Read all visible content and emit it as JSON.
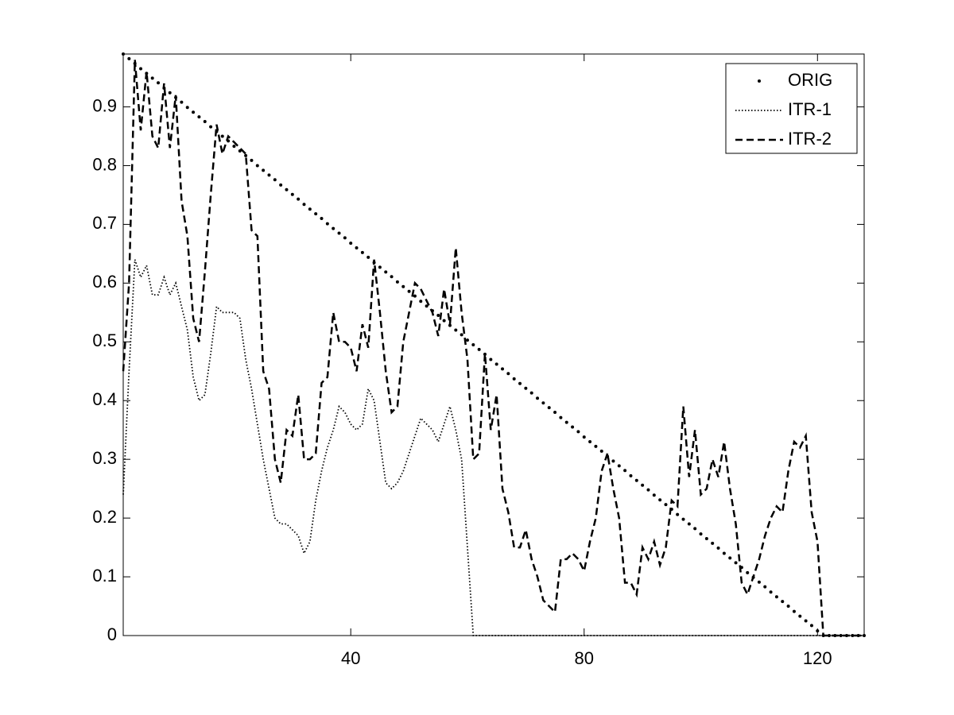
{
  "chart_data": {
    "type": "line",
    "x": [
      1,
      2,
      3,
      4,
      5,
      6,
      7,
      8,
      9,
      10,
      11,
      12,
      13,
      14,
      15,
      16,
      17,
      18,
      19,
      20,
      21,
      22,
      23,
      24,
      25,
      26,
      27,
      28,
      29,
      30,
      31,
      32,
      33,
      34,
      35,
      36,
      37,
      38,
      39,
      40,
      41,
      42,
      43,
      44,
      45,
      46,
      47,
      48,
      49,
      50,
      51,
      52,
      53,
      54,
      55,
      56,
      57,
      58,
      59,
      60,
      61,
      62,
      63,
      64,
      65,
      66,
      67,
      68,
      69,
      70,
      71,
      72,
      73,
      74,
      75,
      76,
      77,
      78,
      79,
      80,
      81,
      82,
      83,
      84,
      85,
      86,
      87,
      88,
      89,
      90,
      91,
      92,
      93,
      94,
      95,
      96,
      97,
      98,
      99,
      100,
      101,
      102,
      103,
      104,
      105,
      106,
      107,
      108,
      109,
      110,
      111,
      112,
      113,
      114,
      115,
      116,
      117,
      118,
      119,
      120,
      121,
      122,
      123,
      124,
      125,
      126,
      127,
      128
    ],
    "series": [
      {
        "name": "ORIG",
        "color": "#000000",
        "style": "marker",
        "values": [
          0.99,
          0.982,
          0.974,
          0.965,
          0.957,
          0.949,
          0.941,
          0.932,
          0.924,
          0.916,
          0.908,
          0.899,
          0.891,
          0.883,
          0.875,
          0.866,
          0.858,
          0.85,
          0.842,
          0.833,
          0.825,
          0.817,
          0.809,
          0.8,
          0.792,
          0.784,
          0.776,
          0.767,
          0.759,
          0.751,
          0.743,
          0.734,
          0.726,
          0.718,
          0.71,
          0.701,
          0.693,
          0.685,
          0.677,
          0.668,
          0.66,
          0.652,
          0.644,
          0.635,
          0.627,
          0.619,
          0.611,
          0.602,
          0.594,
          0.586,
          0.578,
          0.569,
          0.561,
          0.553,
          0.545,
          0.536,
          0.528,
          0.52,
          0.512,
          0.503,
          0.495,
          0.487,
          0.479,
          0.47,
          0.462,
          0.454,
          0.446,
          0.437,
          0.429,
          0.421,
          0.413,
          0.404,
          0.396,
          0.388,
          0.38,
          0.371,
          0.363,
          0.355,
          0.347,
          0.338,
          0.33,
          0.322,
          0.314,
          0.305,
          0.297,
          0.289,
          0.281,
          0.272,
          0.264,
          0.256,
          0.248,
          0.239,
          0.231,
          0.223,
          0.215,
          0.206,
          0.198,
          0.19,
          0.182,
          0.173,
          0.165,
          0.157,
          0.149,
          0.14,
          0.132,
          0.124,
          0.116,
          0.107,
          0.099,
          0.091,
          0.083,
          0.074,
          0.066,
          0.058,
          0.05,
          0.041,
          0.033,
          0.025,
          0.017,
          0.008,
          0,
          0,
          0,
          0,
          0,
          0,
          0,
          0
        ]
      },
      {
        "name": "ITR-1",
        "color": "#000000",
        "style": "dotted",
        "values": [
          0.24,
          0.45,
          0.64,
          0.61,
          0.63,
          0.58,
          0.58,
          0.61,
          0.58,
          0.6,
          0.56,
          0.52,
          0.44,
          0.4,
          0.41,
          0.48,
          0.56,
          0.55,
          0.55,
          0.55,
          0.54,
          0.47,
          0.42,
          0.36,
          0.3,
          0.25,
          0.2,
          0.19,
          0.19,
          0.18,
          0.17,
          0.14,
          0.16,
          0.23,
          0.28,
          0.32,
          0.35,
          0.39,
          0.38,
          0.36,
          0.35,
          0.36,
          0.42,
          0.4,
          0.33,
          0.26,
          0.25,
          0.26,
          0.28,
          0.31,
          0.34,
          0.37,
          0.36,
          0.35,
          0.33,
          0.36,
          0.39,
          0.35,
          0.3,
          0.15,
          0,
          0,
          0,
          0,
          0,
          0,
          0,
          0,
          0,
          0,
          0,
          0,
          0,
          0,
          0,
          0,
          0,
          0,
          0,
          0,
          0,
          0,
          0,
          0,
          0,
          0,
          0,
          0,
          0,
          0,
          0,
          0,
          0,
          0,
          0,
          0,
          0,
          0,
          0,
          0,
          0,
          0,
          0,
          0,
          0,
          0,
          0,
          0,
          0,
          0,
          0,
          0,
          0,
          0,
          0,
          0,
          0,
          0,
          0,
          0,
          0,
          0,
          0,
          0,
          0,
          0,
          0,
          0
        ]
      },
      {
        "name": "ITR-2",
        "color": "#000000",
        "style": "dashed",
        "values": [
          0.45,
          0.6,
          0.98,
          0.86,
          0.96,
          0.85,
          0.83,
          0.94,
          0.83,
          0.92,
          0.74,
          0.68,
          0.54,
          0.5,
          0.62,
          0.75,
          0.87,
          0.82,
          0.85,
          0.84,
          0.83,
          0.82,
          0.69,
          0.68,
          0.45,
          0.42,
          0.3,
          0.26,
          0.35,
          0.34,
          0.41,
          0.3,
          0.3,
          0.31,
          0.43,
          0.44,
          0.55,
          0.5,
          0.5,
          0.49,
          0.45,
          0.53,
          0.49,
          0.64,
          0.55,
          0.45,
          0.38,
          0.39,
          0.5,
          0.55,
          0.6,
          0.59,
          0.57,
          0.55,
          0.51,
          0.59,
          0.53,
          0.66,
          0.55,
          0.47,
          0.3,
          0.31,
          0.48,
          0.35,
          0.41,
          0.25,
          0.21,
          0.15,
          0.15,
          0.18,
          0.13,
          0.1,
          0.06,
          0.05,
          0.04,
          0.13,
          0.13,
          0.14,
          0.13,
          0.11,
          0.16,
          0.2,
          0.28,
          0.31,
          0.25,
          0.2,
          0.09,
          0.09,
          0.07,
          0.15,
          0.13,
          0.16,
          0.12,
          0.15,
          0.23,
          0.22,
          0.39,
          0.27,
          0.35,
          0.24,
          0.25,
          0.3,
          0.27,
          0.33,
          0.25,
          0.19,
          0.09,
          0.07,
          0.1,
          0.13,
          0.17,
          0.2,
          0.22,
          0.21,
          0.28,
          0.33,
          0.32,
          0.34,
          0.21,
          0.16,
          0,
          0,
          0,
          0,
          0,
          0,
          0,
          0
        ]
      }
    ],
    "xlim": [
      1,
      128
    ],
    "xticks": [
      40,
      80,
      120
    ],
    "ylim": [
      0,
      0.99
    ],
    "yticks": [
      0,
      0.1,
      0.2,
      0.3,
      0.4,
      0.5,
      0.6,
      0.7,
      0.8,
      0.9
    ],
    "grid": false,
    "legend": "upper right"
  }
}
